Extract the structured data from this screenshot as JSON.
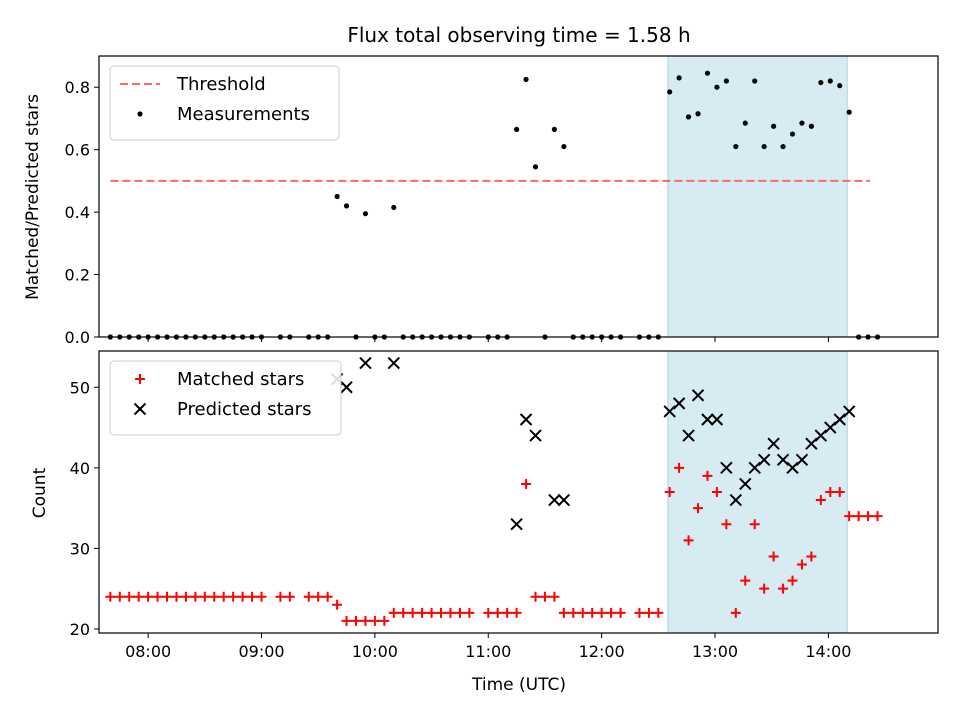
{
  "chart_data": [
    {
      "type": "scatter",
      "title": "Flux total observing time = 1.58 h",
      "xlabel": "",
      "ylabel": "Matched/Predicted stars",
      "xlim": [
        "07:34",
        "14:58"
      ],
      "ylim": [
        0.0,
        0.9
      ],
      "yticks": [
        "0.0",
        "0.2",
        "0.4",
        "0.6",
        "0.8"
      ],
      "legend_position": "top-left",
      "highlight_span": [
        "12:35",
        "14:10"
      ],
      "highlight_color": "#add8e6",
      "threshold": {
        "name": "Threshold",
        "value": 0.5,
        "x_range": [
          "07:40",
          "14:22"
        ],
        "color": "#ff6666",
        "style": "dashed"
      },
      "series": [
        {
          "name": "Measurements",
          "color": "#000000",
          "marker": "dot",
          "points": [
            [
              "07:40",
              0
            ],
            [
              "07:45",
              0
            ],
            [
              "07:50",
              0
            ],
            [
              "07:55",
              0
            ],
            [
              "08:00",
              0
            ],
            [
              "08:05",
              0
            ],
            [
              "08:10",
              0
            ],
            [
              "08:15",
              0
            ],
            [
              "08:20",
              0
            ],
            [
              "08:25",
              0
            ],
            [
              "08:30",
              0
            ],
            [
              "08:35",
              0
            ],
            [
              "08:40",
              0
            ],
            [
              "08:45",
              0
            ],
            [
              "08:50",
              0
            ],
            [
              "08:55",
              0
            ],
            [
              "09:00",
              0
            ],
            [
              "09:10",
              0
            ],
            [
              "09:15",
              0
            ],
            [
              "09:25",
              0
            ],
            [
              "09:30",
              0
            ],
            [
              "09:35",
              0
            ],
            [
              "09:40",
              0.45
            ],
            [
              "09:45",
              0.42
            ],
            [
              "09:50",
              0
            ],
            [
              "09:55",
              0.395
            ],
            [
              "10:00",
              0
            ],
            [
              "10:05",
              0
            ],
            [
              "10:10",
              0.415
            ],
            [
              "10:15",
              0
            ],
            [
              "10:20",
              0
            ],
            [
              "10:25",
              0
            ],
            [
              "10:30",
              0
            ],
            [
              "10:35",
              0
            ],
            [
              "10:40",
              0
            ],
            [
              "10:45",
              0
            ],
            [
              "10:50",
              0
            ],
            [
              "11:00",
              0
            ],
            [
              "11:05",
              0
            ],
            [
              "11:10",
              0
            ],
            [
              "11:15",
              0.665
            ],
            [
              "11:20",
              0.825
            ],
            [
              "11:25",
              0.545
            ],
            [
              "11:30",
              0
            ],
            [
              "11:35",
              0.665
            ],
            [
              "11:40",
              0.61
            ],
            [
              "11:45",
              0
            ],
            [
              "11:50",
              0
            ],
            [
              "11:55",
              0
            ],
            [
              "12:00",
              0
            ],
            [
              "12:05",
              0
            ],
            [
              "12:10",
              0
            ],
            [
              "12:20",
              0
            ],
            [
              "12:25",
              0
            ],
            [
              "12:30",
              0
            ],
            [
              "12:36",
              0.785
            ],
            [
              "12:41",
              0.83
            ],
            [
              "12:46",
              0.705
            ],
            [
              "12:51",
              0.715
            ],
            [
              "12:56",
              0.845
            ],
            [
              "13:01",
              0.8
            ],
            [
              "13:06",
              0.82
            ],
            [
              "13:11",
              0.61
            ],
            [
              "13:16",
              0.685
            ],
            [
              "13:21",
              0.82
            ],
            [
              "13:26",
              0.61
            ],
            [
              "13:31",
              0.675
            ],
            [
              "13:36",
              0.61
            ],
            [
              "13:41",
              0.65
            ],
            [
              "13:46",
              0.685
            ],
            [
              "13:51",
              0.675
            ],
            [
              "13:56",
              0.815
            ],
            [
              "14:01",
              0.82
            ],
            [
              "14:06",
              0.805
            ],
            [
              "14:11",
              0.72
            ],
            [
              "14:16",
              0
            ],
            [
              "14:21",
              0
            ],
            [
              "14:26",
              0
            ]
          ]
        }
      ]
    },
    {
      "type": "scatter",
      "title": "",
      "xlabel": "Time (UTC)",
      "ylabel": "Count",
      "xlim": [
        "07:34",
        "14:58"
      ],
      "ylim": [
        19.5,
        54.5
      ],
      "yticks": [
        "20",
        "30",
        "40",
        "50"
      ],
      "xticks": [
        "08:00",
        "09:00",
        "10:00",
        "11:00",
        "12:00",
        "13:00",
        "14:00"
      ],
      "legend_position": "top-left",
      "highlight_span": [
        "12:35",
        "14:10"
      ],
      "highlight_color": "#add8e6",
      "series": [
        {
          "name": "Matched stars",
          "color": "#ff0000",
          "marker": "plus",
          "points": [
            [
              "07:40",
              24
            ],
            [
              "07:45",
              24
            ],
            [
              "07:50",
              24
            ],
            [
              "07:55",
              24
            ],
            [
              "08:00",
              24
            ],
            [
              "08:05",
              24
            ],
            [
              "08:10",
              24
            ],
            [
              "08:15",
              24
            ],
            [
              "08:20",
              24
            ],
            [
              "08:25",
              24
            ],
            [
              "08:30",
              24
            ],
            [
              "08:35",
              24
            ],
            [
              "08:40",
              24
            ],
            [
              "08:45",
              24
            ],
            [
              "08:50",
              24
            ],
            [
              "08:55",
              24
            ],
            [
              "09:00",
              24
            ],
            [
              "09:10",
              24
            ],
            [
              "09:15",
              24
            ],
            [
              "09:25",
              24
            ],
            [
              "09:30",
              24
            ],
            [
              "09:35",
              24
            ],
            [
              "09:40",
              23
            ],
            [
              "09:45",
              21
            ],
            [
              "09:50",
              21
            ],
            [
              "09:55",
              21
            ],
            [
              "10:00",
              21
            ],
            [
              "10:05",
              21
            ],
            [
              "10:10",
              22
            ],
            [
              "10:15",
              22
            ],
            [
              "10:20",
              22
            ],
            [
              "10:25",
              22
            ],
            [
              "10:30",
              22
            ],
            [
              "10:35",
              22
            ],
            [
              "10:40",
              22
            ],
            [
              "10:45",
              22
            ],
            [
              "10:50",
              22
            ],
            [
              "11:00",
              22
            ],
            [
              "11:05",
              22
            ],
            [
              "11:10",
              22
            ],
            [
              "11:15",
              22
            ],
            [
              "11:20",
              38
            ],
            [
              "11:25",
              24
            ],
            [
              "11:30",
              24
            ],
            [
              "11:35",
              24
            ],
            [
              "11:40",
              22
            ],
            [
              "11:45",
              22
            ],
            [
              "11:50",
              22
            ],
            [
              "11:55",
              22
            ],
            [
              "12:00",
              22
            ],
            [
              "12:05",
              22
            ],
            [
              "12:10",
              22
            ],
            [
              "12:20",
              22
            ],
            [
              "12:25",
              22
            ],
            [
              "12:30",
              22
            ],
            [
              "12:36",
              37
            ],
            [
              "12:41",
              40
            ],
            [
              "12:46",
              31
            ],
            [
              "12:51",
              35
            ],
            [
              "12:56",
              39
            ],
            [
              "13:01",
              37
            ],
            [
              "13:06",
              33
            ],
            [
              "13:11",
              22
            ],
            [
              "13:16",
              26
            ],
            [
              "13:21",
              33
            ],
            [
              "13:26",
              25
            ],
            [
              "13:31",
              29
            ],
            [
              "13:36",
              25
            ],
            [
              "13:41",
              26
            ],
            [
              "13:46",
              28
            ],
            [
              "13:51",
              29
            ],
            [
              "13:56",
              36
            ],
            [
              "14:01",
              37
            ],
            [
              "14:06",
              37
            ],
            [
              "14:11",
              34
            ],
            [
              "14:16",
              34
            ],
            [
              "14:21",
              34
            ],
            [
              "14:26",
              34
            ]
          ]
        },
        {
          "name": "Predicted stars",
          "color": "#000000",
          "marker": "x",
          "points": [
            [
              "09:40",
              51
            ],
            [
              "09:45",
              50
            ],
            [
              "09:55",
              53
            ],
            [
              "10:10",
              53
            ],
            [
              "11:15",
              33
            ],
            [
              "11:20",
              46
            ],
            [
              "11:25",
              44
            ],
            [
              "11:35",
              36
            ],
            [
              "11:40",
              36
            ],
            [
              "12:36",
              47
            ],
            [
              "12:41",
              48
            ],
            [
              "12:46",
              44
            ],
            [
              "12:51",
              49
            ],
            [
              "12:56",
              46
            ],
            [
              "13:01",
              46
            ],
            [
              "13:06",
              40
            ],
            [
              "13:11",
              36
            ],
            [
              "13:16",
              38
            ],
            [
              "13:21",
              40
            ],
            [
              "13:26",
              41
            ],
            [
              "13:31",
              43
            ],
            [
              "13:36",
              41
            ],
            [
              "13:41",
              40
            ],
            [
              "13:46",
              41
            ],
            [
              "13:51",
              43
            ],
            [
              "13:56",
              44
            ],
            [
              "14:01",
              45
            ],
            [
              "14:06",
              46
            ],
            [
              "14:11",
              47
            ]
          ]
        }
      ]
    }
  ]
}
